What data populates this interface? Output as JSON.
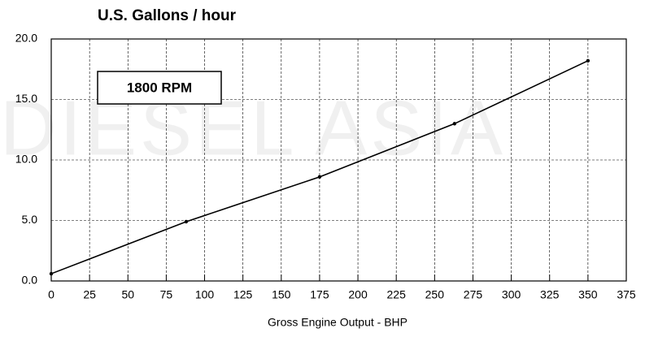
{
  "chart_data": {
    "type": "line",
    "title": "U.S. Gallons / hour",
    "xlabel": "Gross Engine Output - BHP",
    "annotation": "1800 RPM",
    "watermark": "DIESEL ASIA",
    "x": [
      0,
      88,
      175,
      263,
      350
    ],
    "values": [
      0.6,
      4.9,
      8.6,
      13.0,
      18.2
    ],
    "color": "#000000",
    "xlim": [
      0,
      375
    ],
    "xticks": [
      0,
      25,
      50,
      75,
      100,
      125,
      150,
      175,
      200,
      225,
      250,
      275,
      300,
      325,
      350,
      375
    ],
    "ylim": [
      0,
      20
    ],
    "yticks": [
      {
        "value": 0,
        "label": "0.0"
      },
      {
        "value": 5,
        "label": "5.0"
      },
      {
        "value": 10,
        "label": "10.0"
      },
      {
        "value": 15,
        "label": "15.0"
      },
      {
        "value": 20,
        "label": "20.0"
      }
    ],
    "grid": true
  }
}
